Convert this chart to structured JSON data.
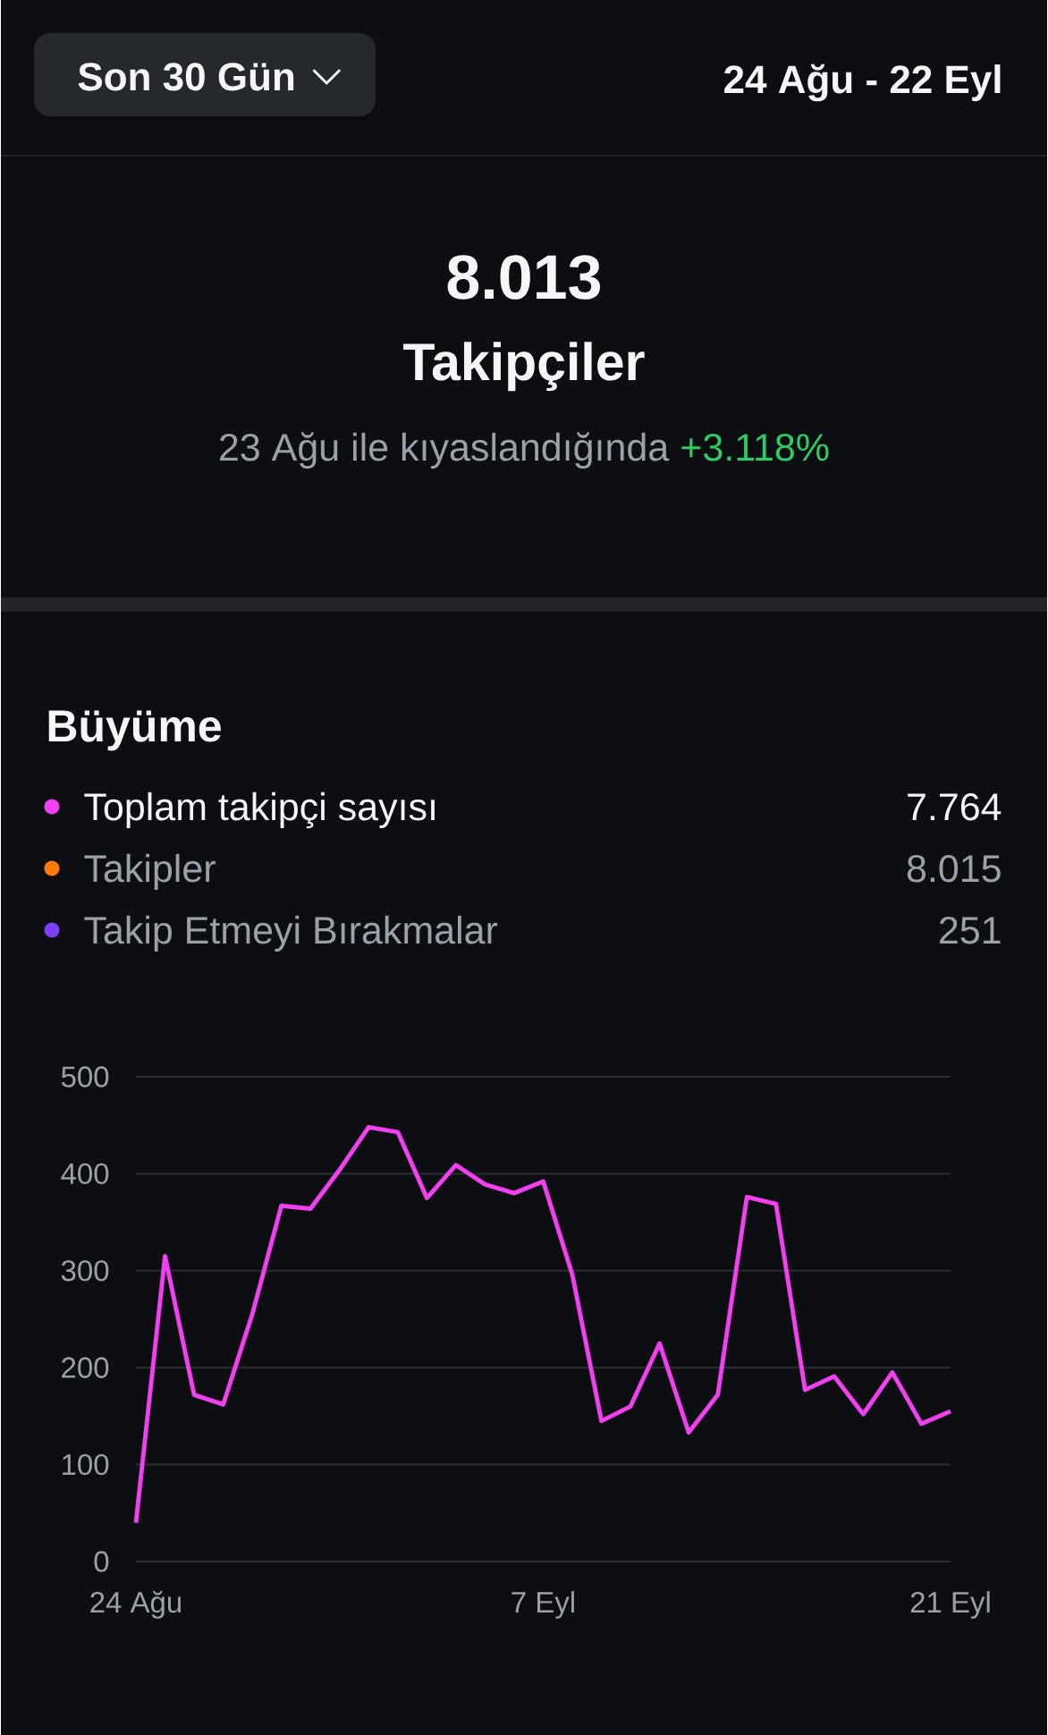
{
  "chart_data": {
    "type": "line",
    "title": "Büyüme",
    "categories": [
      "24 Ağu",
      null,
      null,
      null,
      null,
      null,
      null,
      null,
      null,
      null,
      null,
      null,
      null,
      null,
      "7 Eyl",
      null,
      null,
      null,
      null,
      null,
      null,
      null,
      null,
      null,
      null,
      null,
      null,
      null,
      "21 Eyl"
    ],
    "series": [
      {
        "name": "Toplam takipçi sayısı",
        "color": "#f23ff0",
        "values": [
          40,
          315,
          172,
          162,
          255,
          367,
          364,
          404,
          448,
          443,
          375,
          409,
          389,
          380,
          392,
          296,
          145,
          160,
          225,
          133,
          172,
          376,
          369,
          177,
          191,
          152,
          195,
          142,
          155
        ]
      },
      {
        "name": "Takipler",
        "color": "#ff7a0a",
        "values": [
          null,
          null,
          null,
          null,
          null,
          null,
          null,
          null,
          null,
          null,
          null,
          null,
          null,
          null,
          null,
          null,
          null,
          null,
          null,
          null,
          null,
          null,
          null,
          null,
          null,
          null,
          null,
          null,
          null
        ]
      },
      {
        "name": "Takip Etmeyi Bırakmalar",
        "color": "#7b3ff5",
        "values": [
          null,
          null,
          null,
          null,
          null,
          null,
          null,
          null,
          null,
          null,
          null,
          null,
          null,
          null,
          null,
          null,
          null,
          null,
          null,
          null,
          null,
          null,
          null,
          null,
          null,
          null,
          null,
          null,
          null
        ]
      }
    ],
    "ylim": [
      0,
      500
    ],
    "yticks": [
      0,
      100,
      200,
      300,
      400,
      500
    ],
    "grid": "y",
    "legend": "top",
    "annotations": [
      "Son 30 Gün",
      "24 Ağu - 22 Eyl",
      "8.013",
      "Takipçiler",
      "23 Ağu ile kıyaslandığında",
      "+3.118%",
      "7.764",
      "8.015",
      "251"
    ]
  }
}
